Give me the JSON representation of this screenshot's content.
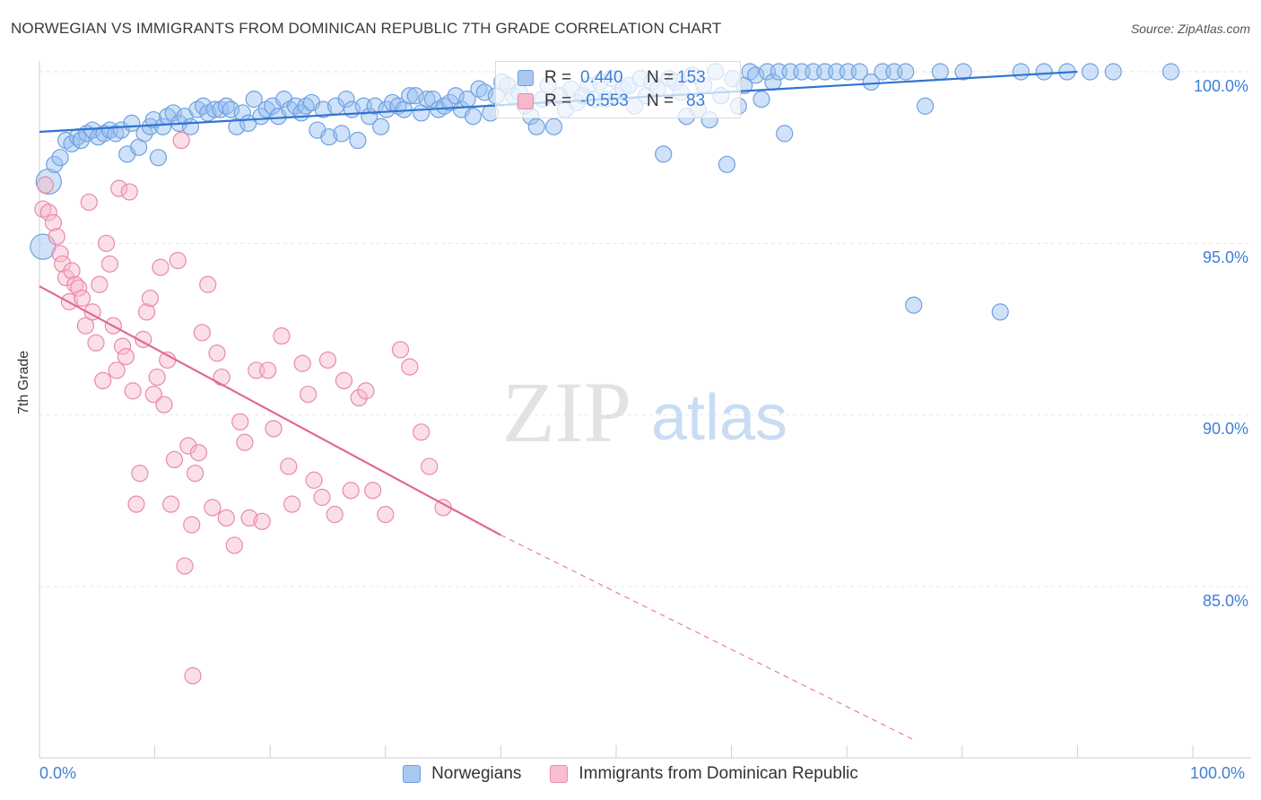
{
  "title": "NORWEGIAN VS IMMIGRANTS FROM DOMINICAN REPUBLIC 7TH GRADE CORRELATION CHART",
  "source": "Source: ZipAtlas.com",
  "watermark": {
    "zip": "ZIP",
    "atlas": "atlas"
  },
  "legend_top": [
    {
      "r_label": "R =",
      "r_value": "0.440",
      "n_label": "N =",
      "n_value": "153",
      "color": "#a8c8f0",
      "border": "#6fa0e0"
    },
    {
      "r_label": "R =",
      "r_value": "-0.553",
      "n_label": "N =",
      "n_value": "83",
      "color": "#f7b8cb",
      "border": "#e88aa8"
    }
  ],
  "legend_bottom": [
    {
      "label": "Norwegians",
      "color": "#a8c8f0",
      "border": "#6fa0e0"
    },
    {
      "label": "Immigrants from Dominican Republic",
      "color": "#f7c0d0",
      "border": "#e88aa8"
    }
  ],
  "axes": {
    "y_title": "7th Grade",
    "x_min_label": "0.0%",
    "x_max_label": "100.0%",
    "y_ticks": [
      {
        "value": 100,
        "label": "100.0%"
      },
      {
        "value": 95,
        "label": "95.0%"
      },
      {
        "value": 90,
        "label": "90.0%"
      },
      {
        "value": 85,
        "label": "85.0%"
      }
    ]
  },
  "chart_data": {
    "type": "scatter",
    "title": "NORWEGIAN VS IMMIGRANTS FROM DOMINICAN REPUBLIC 7TH GRADE CORRELATION CHART",
    "xlabel": "",
    "ylabel": "7th Grade",
    "xlim": [
      0,
      100
    ],
    "ylim": [
      80.5,
      100.4
    ],
    "grid": true,
    "series": [
      {
        "name": "Norwegians",
        "color": "#6fa0e0",
        "fill": "rgba(150,190,240,0.45)",
        "trend": {
          "x0": 0,
          "y0": 98.25,
          "x1": 90,
          "y1": 100.0,
          "dash_to": null
        },
        "points": [
          [
            0.3,
            94.9
          ],
          [
            0.8,
            96.8
          ],
          [
            1.3,
            97.3
          ],
          [
            1.8,
            97.5
          ],
          [
            2.3,
            98.0
          ],
          [
            2.8,
            97.9
          ],
          [
            3.3,
            98.1
          ],
          [
            3.6,
            98.0
          ],
          [
            4.1,
            98.2
          ],
          [
            4.6,
            98.3
          ],
          [
            5.1,
            98.1
          ],
          [
            5.6,
            98.2
          ],
          [
            6.1,
            98.3
          ],
          [
            6.6,
            98.2
          ],
          [
            7.1,
            98.3
          ],
          [
            7.6,
            97.6
          ],
          [
            8.0,
            98.5
          ],
          [
            8.6,
            97.8
          ],
          [
            9.1,
            98.2
          ],
          [
            9.6,
            98.4
          ],
          [
            9.9,
            98.6
          ],
          [
            10.3,
            97.5
          ],
          [
            10.7,
            98.4
          ],
          [
            11.1,
            98.7
          ],
          [
            11.6,
            98.8
          ],
          [
            12.1,
            98.5
          ],
          [
            12.6,
            98.7
          ],
          [
            13.1,
            98.4
          ],
          [
            13.7,
            98.9
          ],
          [
            14.2,
            99.0
          ],
          [
            14.6,
            98.8
          ],
          [
            15.2,
            98.9
          ],
          [
            15.7,
            98.9
          ],
          [
            16.2,
            99.0
          ],
          [
            16.6,
            98.9
          ],
          [
            17.1,
            98.4
          ],
          [
            17.6,
            98.8
          ],
          [
            18.1,
            98.5
          ],
          [
            18.6,
            99.2
          ],
          [
            19.2,
            98.7
          ],
          [
            19.7,
            98.9
          ],
          [
            20.2,
            99.0
          ],
          [
            20.7,
            98.7
          ],
          [
            21.2,
            99.2
          ],
          [
            21.7,
            98.9
          ],
          [
            22.2,
            99.0
          ],
          [
            22.7,
            98.8
          ],
          [
            23.1,
            99.0
          ],
          [
            23.6,
            99.1
          ],
          [
            24.1,
            98.3
          ],
          [
            24.6,
            98.9
          ],
          [
            25.1,
            98.1
          ],
          [
            25.7,
            99.0
          ],
          [
            26.2,
            98.2
          ],
          [
            26.6,
            99.2
          ],
          [
            27.1,
            98.9
          ],
          [
            27.6,
            98.0
          ],
          [
            28.1,
            99.0
          ],
          [
            28.6,
            98.7
          ],
          [
            29.1,
            99.0
          ],
          [
            29.6,
            98.4
          ],
          [
            30.1,
            98.9
          ],
          [
            30.6,
            99.1
          ],
          [
            31.1,
            99.0
          ],
          [
            31.6,
            98.9
          ],
          [
            32.1,
            99.3
          ],
          [
            32.6,
            99.3
          ],
          [
            33.1,
            98.8
          ],
          [
            33.6,
            99.2
          ],
          [
            34.1,
            99.2
          ],
          [
            34.6,
            98.9
          ],
          [
            35.1,
            99.0
          ],
          [
            35.6,
            99.1
          ],
          [
            36.1,
            99.3
          ],
          [
            36.6,
            98.9
          ],
          [
            37.1,
            99.2
          ],
          [
            37.6,
            98.7
          ],
          [
            38.1,
            99.5
          ],
          [
            38.6,
            99.4
          ],
          [
            39.1,
            98.8
          ],
          [
            39.6,
            99.3
          ],
          [
            40.1,
            99.7
          ],
          [
            40.6,
            99.6
          ],
          [
            41.1,
            99.3
          ],
          [
            41.6,
            99.4
          ],
          [
            42.1,
            99.0
          ],
          [
            42.6,
            98.7
          ],
          [
            43.1,
            98.4
          ],
          [
            43.6,
            99.2
          ],
          [
            44.1,
            99.6
          ],
          [
            44.6,
            98.4
          ],
          [
            45.1,
            99.3
          ],
          [
            45.6,
            98.9
          ],
          [
            46.1,
            99.5
          ],
          [
            46.6,
            99.1
          ],
          [
            47.1,
            99.3
          ],
          [
            47.6,
            99.6
          ],
          [
            48.1,
            99.2
          ],
          [
            48.6,
            99.7
          ],
          [
            49.1,
            99.2
          ],
          [
            49.6,
            99.8
          ],
          [
            50.1,
            99.3
          ],
          [
            50.6,
            99.5
          ],
          [
            51.1,
            99.6
          ],
          [
            51.6,
            99.0
          ],
          [
            52.1,
            99.8
          ],
          [
            52.6,
            99.3
          ],
          [
            53.1,
            99.7
          ],
          [
            53.6,
            99.5
          ],
          [
            54.1,
            97.6
          ],
          [
            54.6,
            99.8
          ],
          [
            55.1,
            99.7
          ],
          [
            55.6,
            99.4
          ],
          [
            56.1,
            98.7
          ],
          [
            56.6,
            99.9
          ],
          [
            57.1,
            98.9
          ],
          [
            57.6,
            99.6
          ],
          [
            58.1,
            98.6
          ],
          [
            58.6,
            100.0
          ],
          [
            59.1,
            99.3
          ],
          [
            59.6,
            97.3
          ],
          [
            60.1,
            99.8
          ],
          [
            60.6,
            99.0
          ],
          [
            61.1,
            99.6
          ],
          [
            61.6,
            100.0
          ],
          [
            62.1,
            99.9
          ],
          [
            62.6,
            99.2
          ],
          [
            63.1,
            100.0
          ],
          [
            63.6,
            99.7
          ],
          [
            64.1,
            100.0
          ],
          [
            64.6,
            98.2
          ],
          [
            65.1,
            100.0
          ],
          [
            66.1,
            100.0
          ],
          [
            67.1,
            100.0
          ],
          [
            68.1,
            100.0
          ],
          [
            69.1,
            100.0
          ],
          [
            70.1,
            100.0
          ],
          [
            71.1,
            100.0
          ],
          [
            72.1,
            99.7
          ],
          [
            73.1,
            100.0
          ],
          [
            74.1,
            100.0
          ],
          [
            75.1,
            100.0
          ],
          [
            75.8,
            93.2
          ],
          [
            76.8,
            99.0
          ],
          [
            78.1,
            100.0
          ],
          [
            80.1,
            100.0
          ],
          [
            83.3,
            93.0
          ],
          [
            85.1,
            100.0
          ],
          [
            87.1,
            100.0
          ],
          [
            89.1,
            100.0
          ],
          [
            91.1,
            100.0
          ],
          [
            93.1,
            100.0
          ],
          [
            98.1,
            100.0
          ]
        ]
      },
      {
        "name": "Immigrants from Dominican Republic",
        "color": "#e88aa8",
        "fill": "rgba(247,184,203,0.45)",
        "trend": {
          "x0": 0,
          "y0": 93.75,
          "x1": 40,
          "y1": 86.5,
          "dash_to": [
            76,
            80.5
          ]
        },
        "points": [
          [
            0.3,
            96.0
          ],
          [
            0.5,
            96.7
          ],
          [
            0.8,
            95.9
          ],
          [
            1.2,
            95.6
          ],
          [
            1.5,
            95.2
          ],
          [
            1.8,
            94.7
          ],
          [
            2.0,
            94.4
          ],
          [
            2.3,
            94.0
          ],
          [
            2.6,
            93.3
          ],
          [
            2.8,
            94.2
          ],
          [
            3.1,
            93.8
          ],
          [
            3.4,
            93.7
          ],
          [
            3.7,
            93.4
          ],
          [
            4.0,
            92.6
          ],
          [
            4.3,
            96.2
          ],
          [
            4.6,
            93.0
          ],
          [
            4.9,
            92.1
          ],
          [
            5.2,
            93.8
          ],
          [
            5.5,
            91.0
          ],
          [
            5.8,
            95.0
          ],
          [
            6.1,
            94.4
          ],
          [
            6.4,
            92.6
          ],
          [
            6.7,
            91.3
          ],
          [
            6.9,
            96.6
          ],
          [
            7.2,
            92.0
          ],
          [
            7.5,
            91.7
          ],
          [
            7.8,
            96.5
          ],
          [
            8.1,
            90.7
          ],
          [
            8.4,
            87.4
          ],
          [
            8.7,
            88.3
          ],
          [
            9.0,
            92.2
          ],
          [
            9.3,
            93.0
          ],
          [
            9.6,
            93.4
          ],
          [
            9.9,
            90.6
          ],
          [
            10.2,
            91.1
          ],
          [
            10.5,
            94.3
          ],
          [
            10.8,
            90.3
          ],
          [
            11.1,
            91.6
          ],
          [
            11.4,
            87.4
          ],
          [
            11.7,
            88.7
          ],
          [
            12.0,
            94.5
          ],
          [
            12.3,
            98.0
          ],
          [
            12.6,
            85.6
          ],
          [
            12.9,
            89.1
          ],
          [
            13.2,
            86.8
          ],
          [
            13.5,
            88.3
          ],
          [
            13.8,
            88.9
          ],
          [
            14.1,
            92.4
          ],
          [
            14.6,
            93.8
          ],
          [
            15.0,
            87.3
          ],
          [
            15.4,
            91.8
          ],
          [
            15.8,
            91.1
          ],
          [
            16.2,
            87.0
          ],
          [
            16.9,
            86.2
          ],
          [
            17.4,
            89.8
          ],
          [
            17.8,
            89.2
          ],
          [
            18.2,
            87.0
          ],
          [
            18.8,
            91.3
          ],
          [
            19.3,
            86.9
          ],
          [
            19.8,
            91.3
          ],
          [
            20.3,
            89.6
          ],
          [
            21.0,
            92.3
          ],
          [
            21.6,
            88.5
          ],
          [
            21.9,
            87.4
          ],
          [
            22.8,
            91.5
          ],
          [
            23.3,
            90.6
          ],
          [
            23.8,
            88.1
          ],
          [
            24.5,
            87.6
          ],
          [
            25.0,
            91.6
          ],
          [
            25.6,
            87.1
          ],
          [
            26.4,
            91.0
          ],
          [
            27.0,
            87.8
          ],
          [
            27.7,
            90.5
          ],
          [
            28.3,
            90.7
          ],
          [
            28.9,
            87.8
          ],
          [
            30.0,
            87.1
          ],
          [
            31.3,
            91.9
          ],
          [
            32.1,
            91.4
          ],
          [
            33.1,
            89.5
          ],
          [
            33.8,
            88.5
          ],
          [
            35.0,
            87.3
          ],
          [
            13.3,
            82.4
          ]
        ]
      }
    ]
  }
}
